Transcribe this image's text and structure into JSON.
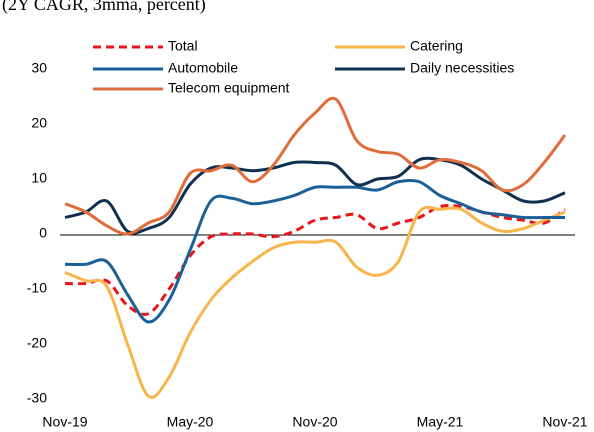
{
  "chart_data": {
    "type": "line",
    "subtitle": "(2Y CAGR, 3mma, percent)",
    "categories": [
      "Nov-19",
      null,
      null,
      null,
      null,
      null,
      "May-20",
      null,
      null,
      null,
      null,
      null,
      "Nov-20",
      null,
      null,
      null,
      null,
      null,
      "May-21",
      null,
      null,
      null,
      null,
      null,
      "Nov-21"
    ],
    "series": [
      {
        "name": "Total",
        "color": "#e8161b",
        "style": "dashed",
        "values": [
          -9,
          -9,
          -8.5,
          -13,
          -14.5,
          -10,
          -4,
          -0.5,
          0,
          0,
          -0.5,
          0.5,
          2.5,
          3,
          3.5,
          1,
          2,
          3,
          5,
          5,
          4,
          3,
          2.5,
          2,
          4.5
        ]
      },
      {
        "name": "Catering",
        "color": "#f8b54a",
        "style": "solid",
        "values": [
          -7,
          -8.5,
          -9.5,
          -20,
          -29.5,
          -26,
          -18,
          -12,
          -8,
          -5,
          -2.5,
          -1.5,
          -1.5,
          -1.5,
          -6,
          -7.5,
          -5,
          4,
          4.5,
          4.5,
          2,
          0.5,
          1,
          2.5,
          4
        ]
      },
      {
        "name": "Automobile",
        "color": "#1a5f96",
        "style": "solid",
        "values": [
          -5.5,
          -5.5,
          -5,
          -11,
          -16,
          -12,
          -3,
          6,
          6.5,
          5.5,
          6,
          7,
          8.5,
          8.5,
          8.5,
          8,
          9.5,
          9.5,
          7,
          5.5,
          4,
          3.5,
          3,
          3,
          3
        ]
      },
      {
        "name": "Daily necessities",
        "color": "#10304f",
        "style": "solid",
        "values": [
          3,
          4,
          6,
          0.5,
          1,
          3,
          9,
          12,
          12,
          11.5,
          12,
          13,
          13,
          12.5,
          9,
          10,
          10.5,
          13.5,
          13.5,
          12.5,
          10,
          8,
          6,
          6,
          7.5
        ]
      },
      {
        "name": "Telecom equipment",
        "color": "#e06c3c",
        "style": "solid",
        "values": [
          5.5,
          4,
          1.5,
          0,
          2,
          4,
          11,
          11.5,
          12.5,
          9.5,
          12.5,
          18,
          22,
          24.5,
          17,
          15,
          14.5,
          12,
          13.5,
          13,
          11.5,
          8,
          9,
          13,
          18
        ]
      }
    ],
    "ylim": [
      -30,
      30
    ],
    "yticks": [
      -30,
      -20,
      -10,
      0,
      10,
      20,
      30
    ],
    "grid": false
  }
}
